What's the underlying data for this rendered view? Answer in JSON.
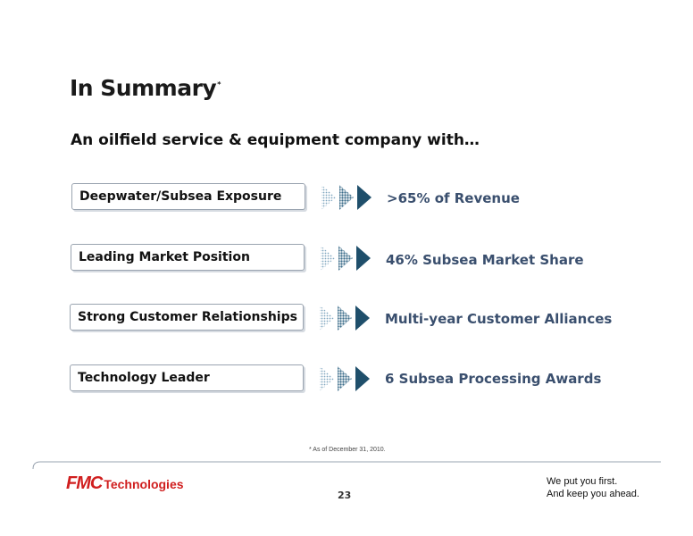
{
  "slide": {
    "title": "In Summary",
    "title_marker": "*",
    "subtitle": "An oilfield service & equipment company with…"
  },
  "rows": [
    {
      "label": "Deepwater/Subsea Exposure",
      "result": ">65% of Revenue"
    },
    {
      "label": "Leading Market Position",
      "result": "46% Subsea Market Share"
    },
    {
      "label": "Strong Customer Relationships",
      "result": "Multi-year Customer Alliances"
    },
    {
      "label": "Technology Leader",
      "result": "6 Subsea Processing Awards"
    }
  ],
  "footnote": "* As of December 31, 2010.",
  "footer": {
    "logo_fmc": "FMC",
    "logo_tech": "Technologies",
    "page_number": "23",
    "tagline_line1": "We put you first.",
    "tagline_line2": "And keep you ahead."
  },
  "colors": {
    "accent_text": "#3a4f6e",
    "arrow_dark": "#1f4f6b",
    "arrow_light": "#7fa6bf",
    "brand_red": "#d01f1f"
  }
}
